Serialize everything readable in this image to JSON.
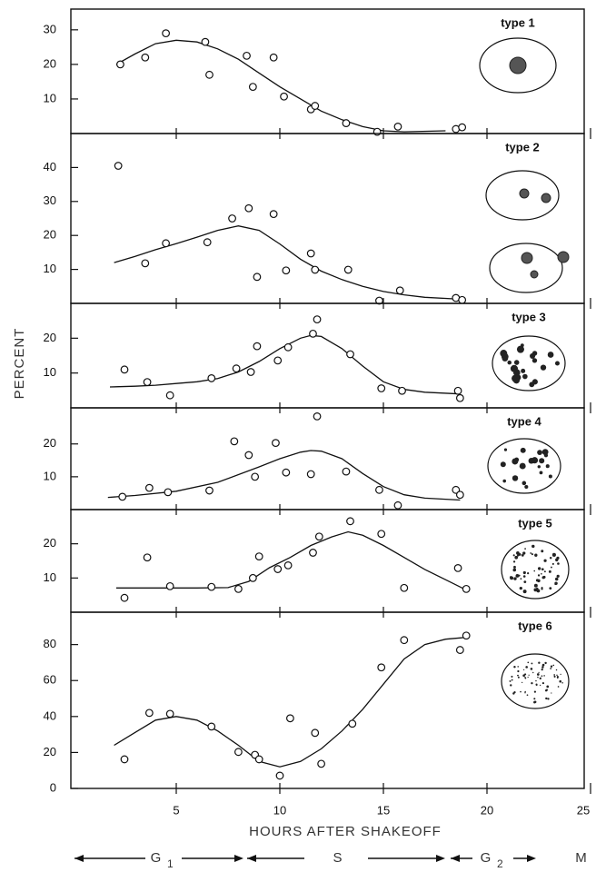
{
  "chart_data": [
    {
      "type": "scatter",
      "label": "type 1",
      "ylim": [
        0,
        36
      ],
      "yticks": [
        10,
        20,
        30
      ],
      "points": {
        "x": [
          2.3,
          3.5,
          4.5,
          6.4,
          6.6,
          8.4,
          8.7,
          9.7,
          10.2,
          11.5,
          11.7,
          13.2,
          14.7,
          15.7,
          18.5,
          18.8
        ],
        "y": [
          20,
          22,
          29,
          26.5,
          17,
          22.5,
          13.5,
          22,
          10.7,
          7,
          8,
          3,
          0.5,
          2,
          1.3,
          1.8
        ]
      },
      "curve": {
        "x": [
          2.1,
          3,
          4,
          5,
          6,
          7,
          8,
          9,
          10,
          11,
          12,
          13,
          14,
          15,
          16,
          18
        ],
        "y": [
          20,
          23,
          26,
          27,
          26.5,
          24.5,
          21.5,
          17.5,
          13.5,
          10,
          6.5,
          4,
          2,
          0.8,
          0.5,
          0.8
        ]
      }
    },
    {
      "type": "scatter",
      "label": "type 2",
      "ylim": [
        0,
        50
      ],
      "yticks": [
        10,
        20,
        30,
        40
      ],
      "points": {
        "x": [
          2.2,
          3.5,
          4.5,
          6.5,
          7.7,
          8.5,
          8.9,
          9.7,
          10.3,
          11.5,
          11.7,
          13.3,
          14.8,
          15.8,
          18.5,
          18.8
        ],
        "y": [
          40.5,
          11.8,
          17.7,
          18,
          25,
          28,
          7.8,
          26.3,
          9.7,
          14.7,
          9.9,
          9.9,
          0.8,
          3.8,
          1.6,
          1
        ]
      },
      "curve": {
        "x": [
          2,
          3,
          4,
          5,
          6,
          7,
          8,
          9,
          10,
          11,
          12,
          13,
          14,
          15,
          16,
          17,
          18.5
        ],
        "y": [
          12,
          13.8,
          15.8,
          17.6,
          19.5,
          21.5,
          22.8,
          21.5,
          17.5,
          13,
          9.5,
          7,
          5,
          3.5,
          2.5,
          1.8,
          1.3
        ]
      }
    },
    {
      "type": "scatter",
      "label": "type 3",
      "ylim": [
        0,
        30
      ],
      "yticks": [
        10,
        20
      ],
      "points": {
        "x": [
          2.5,
          3.6,
          4.7,
          6.7,
          7.9,
          8.6,
          8.9,
          9.9,
          10.4,
          11.6,
          11.8,
          13.4,
          14.9,
          15.9,
          18.6,
          18.7
        ],
        "y": [
          11,
          7.4,
          3.6,
          8.5,
          11.3,
          10.3,
          17.7,
          13.6,
          17.4,
          21.3,
          25.4,
          15.4,
          5.6,
          4.9,
          4.9,
          2.8
        ]
      },
      "curve": {
        "x": [
          1.8,
          3,
          4,
          5,
          6,
          7,
          8,
          9,
          10,
          11,
          11.5,
          12,
          13,
          14,
          15,
          16,
          17,
          18.7
        ],
        "y": [
          6,
          6.2,
          6.5,
          7,
          7.5,
          8.4,
          10.3,
          13.3,
          17,
          20,
          20.8,
          20.5,
          17,
          12,
          7.5,
          5.3,
          4.5,
          4
        ]
      }
    },
    {
      "type": "scatter",
      "label": "type 4",
      "ylim": [
        0,
        31
      ],
      "yticks": [
        10,
        20
      ],
      "points": {
        "x": [
          2.4,
          3.7,
          4.6,
          6.6,
          7.8,
          8.5,
          8.8,
          9.8,
          10.3,
          11.5,
          11.8,
          13.2,
          14.8,
          15.7,
          18.5,
          18.7
        ],
        "y": [
          3.9,
          6.6,
          5.3,
          5.8,
          20.8,
          16.6,
          10,
          20.3,
          11.3,
          10.8,
          28.4,
          11.6,
          6,
          1.3,
          6,
          4.5
        ]
      },
      "curve": {
        "x": [
          1.7,
          3,
          5,
          7,
          9,
          10,
          11,
          11.5,
          12,
          13,
          14,
          15,
          16,
          17,
          18.7
        ],
        "y": [
          3.7,
          4.3,
          5.6,
          8.3,
          13,
          15.5,
          17.5,
          18,
          17.8,
          15.5,
          11,
          7,
          4.5,
          3.5,
          2.9
        ]
      }
    },
    {
      "type": "scatter",
      "label": "type 5",
      "ylim": [
        0,
        30
      ],
      "yticks": [
        10,
        20
      ],
      "points": {
        "x": [
          2.5,
          3.6,
          4.7,
          6.7,
          8,
          8.7,
          9,
          9.9,
          10.4,
          11.6,
          11.9,
          13.4,
          14.9,
          16,
          18.6,
          19
        ],
        "y": [
          4.2,
          16,
          7.6,
          7.4,
          6.8,
          10,
          16.3,
          12.6,
          13.7,
          17.4,
          22.1,
          26.6,
          22.9,
          7.1,
          12.9,
          6.8
        ]
      },
      "curve": {
        "x": [
          2.1,
          4,
          6,
          7.5,
          8.5,
          9.5,
          10.5,
          11.5,
          12.5,
          13.3,
          14,
          15,
          16,
          17,
          18,
          18.9
        ],
        "y": [
          7.1,
          7.1,
          7.1,
          7.2,
          9,
          13,
          16,
          19.5,
          22,
          23.5,
          22.5,
          19.5,
          16,
          12.5,
          9.5,
          6.8
        ]
      }
    },
    {
      "type": "scatter",
      "label": "type 6",
      "ylim": [
        0,
        98
      ],
      "yticks": [
        0,
        20,
        40,
        60,
        80
      ],
      "points": {
        "x": [
          2.5,
          3.7,
          4.7,
          6.7,
          8,
          8.8,
          9,
          10,
          10.5,
          11.7,
          12,
          13.5,
          14.9,
          16,
          18.7,
          19
        ],
        "y": [
          16.2,
          42,
          41.5,
          34.4,
          20.3,
          18.7,
          16.2,
          7.1,
          39,
          30.9,
          13.7,
          36,
          67.3,
          82.5,
          77,
          85
        ]
      },
      "curve": {
        "x": [
          2,
          3,
          4,
          5,
          6,
          7,
          8,
          9,
          10,
          11,
          12,
          13,
          14,
          15,
          16,
          17,
          18,
          19
        ],
        "y": [
          24,
          31,
          38,
          40,
          38,
          32,
          24,
          15,
          12,
          15,
          22,
          32,
          44,
          58,
          72,
          80,
          83,
          84
        ]
      }
    }
  ],
  "shared": {
    "xlim": [
      0,
      25
    ],
    "xticks": [
      5,
      10,
      15,
      20,
      25
    ],
    "x_label": "HOURS AFTER SHAKEOFF",
    "y_label": "PERCENT",
    "phases": [
      {
        "label": "G",
        "subscript": "1"
      },
      {
        "label": "S"
      },
      {
        "label": "G",
        "subscript": "2"
      },
      {
        "label": "M"
      }
    ]
  }
}
